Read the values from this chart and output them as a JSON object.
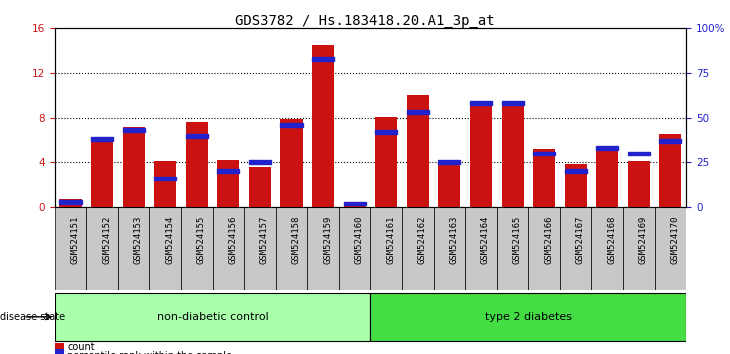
{
  "title": "GDS3782 / Hs.183418.20.A1_3p_at",
  "samples": [
    "GSM524151",
    "GSM524152",
    "GSM524153",
    "GSM524154",
    "GSM524155",
    "GSM524156",
    "GSM524157",
    "GSM524158",
    "GSM524159",
    "GSM524160",
    "GSM524161",
    "GSM524162",
    "GSM524163",
    "GSM524164",
    "GSM524165",
    "GSM524166",
    "GSM524167",
    "GSM524168",
    "GSM524169",
    "GSM524170"
  ],
  "counts": [
    0.7,
    6.2,
    7.2,
    4.1,
    7.6,
    4.2,
    3.6,
    7.9,
    14.5,
    0.3,
    8.1,
    10.0,
    4.2,
    9.5,
    9.5,
    5.2,
    3.9,
    5.0,
    4.1,
    6.5
  ],
  "percentile_values": [
    3,
    38,
    43,
    16,
    40,
    20,
    25,
    46,
    83,
    2,
    42,
    53,
    25,
    58,
    58,
    30,
    20,
    33,
    30,
    37
  ],
  "n_control": 10,
  "n_total": 20,
  "group_labels": [
    "non-diabetic control",
    "type 2 diabetes"
  ],
  "group_color_light": "#AAFFAA",
  "group_color_dark": "#44DD44",
  "bar_color": "#CC1111",
  "percentile_color": "#2222CC",
  "ylim_left": [
    0,
    16
  ],
  "ylim_right": [
    0,
    100
  ],
  "yticks_left": [
    0,
    4,
    8,
    12,
    16
  ],
  "yticks_right": [
    0,
    25,
    50,
    75,
    100
  ],
  "title_fontsize": 10,
  "tick_fontsize": 6.5,
  "label_fontsize": 8
}
